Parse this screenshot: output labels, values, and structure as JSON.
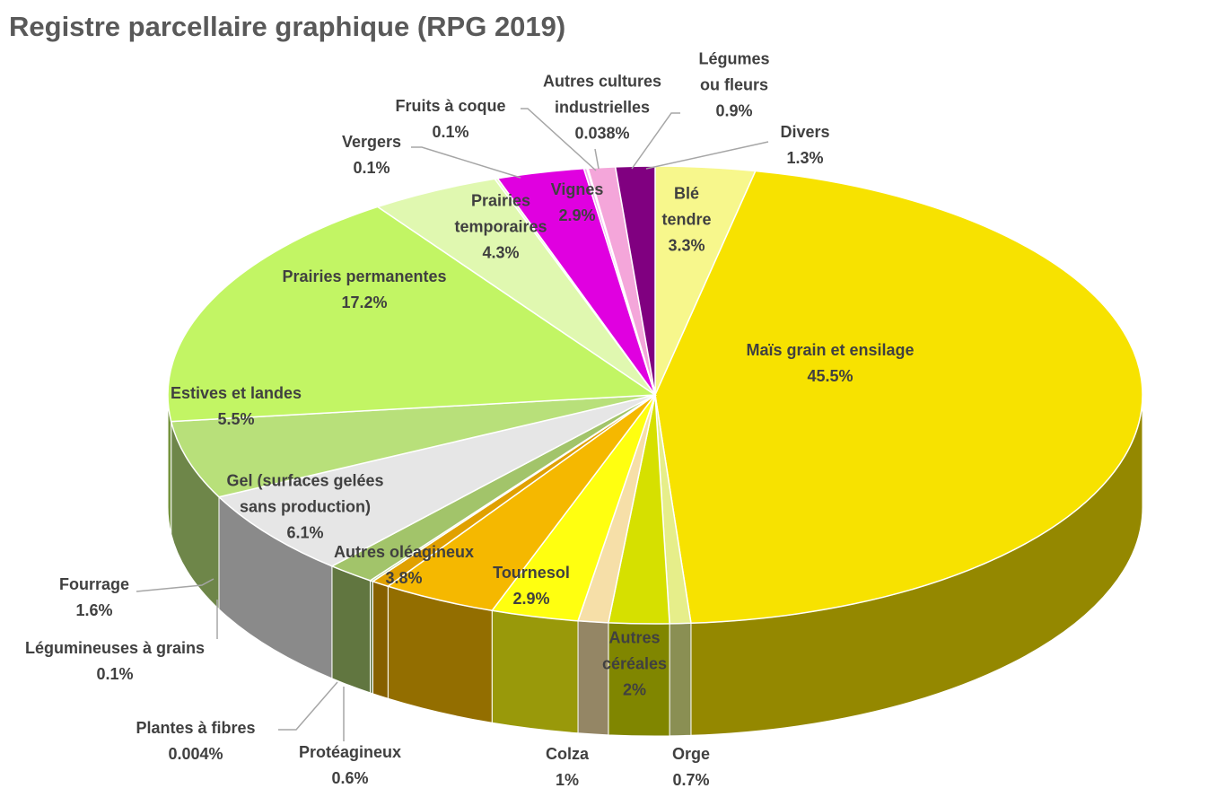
{
  "chart_data": {
    "type": "pie",
    "title": "Registre parcellaire graphique (RPG 2019)",
    "categories": [
      "Blé tendre",
      "Maïs grain et ensilage",
      "Orge",
      "Autres céréales",
      "Colza",
      "Tournesol",
      "Autres oléagineux",
      "Protéagineux",
      "Plantes à fibres",
      "Légumineuses à grains",
      "Fourrage",
      "Gel (surfaces gelées sans production)",
      "Estives et landes",
      "Prairies permanentes",
      "Prairies temporaires",
      "Vergers",
      "Vignes",
      "Fruits à coque",
      "Autres cultures industrielles",
      "Légumes ou fleurs",
      "Divers"
    ],
    "values": [
      3.3,
      45.5,
      0.7,
      2,
      1,
      2.9,
      3.8,
      0.6,
      0.004,
      0.1,
      1.6,
      6.1,
      5.5,
      17.2,
      4.3,
      0.1,
      2.9,
      0.1,
      0.038,
      0.9,
      1.3
    ],
    "value_labels": [
      "3.3%",
      "45.5%",
      "0.7%",
      "2%",
      "1%",
      "2.9%",
      "3.8%",
      "0.6%",
      "0.004%",
      "0.1%",
      "1.6%",
      "6.1%",
      "5.5%",
      "17.2%",
      "4.3%",
      "0.1%",
      "2.9%",
      "0.1%",
      "0.038%",
      "0.9%",
      "1.3%"
    ],
    "colors": [
      "#f7f78c",
      "#f7e200",
      "#e6ee8a",
      "#d6e000",
      "#f6dfa8",
      "#ffff10",
      "#f5b800",
      "#e0a000",
      "#f0a030",
      "#b0d080",
      "#a2c46a",
      "#e6e6e6",
      "#b8e07a",
      "#c2f564",
      "#e0f8b0",
      "#eaf8c8",
      "#e000e0",
      "#f0b0f0",
      "#ffc0e8",
      "#f4a6da",
      "#800080"
    ]
  }
}
